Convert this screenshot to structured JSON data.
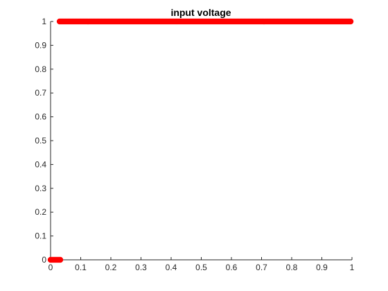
{
  "chart_data": {
    "type": "scatter",
    "title": "input voltage",
    "xlabel": "",
    "ylabel": "",
    "xlim": [
      0,
      1
    ],
    "ylim": [
      0,
      1
    ],
    "xticks": [
      0,
      0.1,
      0.2,
      0.3,
      0.4,
      0.5,
      0.6,
      0.7,
      0.8,
      0.9,
      1
    ],
    "yticks": [
      0,
      0.1,
      0.2,
      0.3,
      0.4,
      0.5,
      0.6,
      0.7,
      0.8,
      0.9,
      1
    ],
    "xtick_labels": [
      "0",
      "0.1",
      "0.2",
      "0.3",
      "0.4",
      "0.5",
      "0.6",
      "0.7",
      "0.8",
      "0.9",
      "1"
    ],
    "ytick_labels": [
      "0",
      "0.1",
      "0.2",
      "0.3",
      "0.4",
      "0.5",
      "0.6",
      "0.7",
      "0.8",
      "0.9",
      "1"
    ],
    "grid": false,
    "box": false,
    "marker_color": "#ff0000",
    "axis_color": "#262626",
    "series": [
      {
        "segments": [
          {
            "x_start": 0,
            "x_end": 0.035,
            "y": 0
          },
          {
            "x_start": 0.03,
            "x_end": 1,
            "y": 1
          }
        ]
      }
    ]
  }
}
